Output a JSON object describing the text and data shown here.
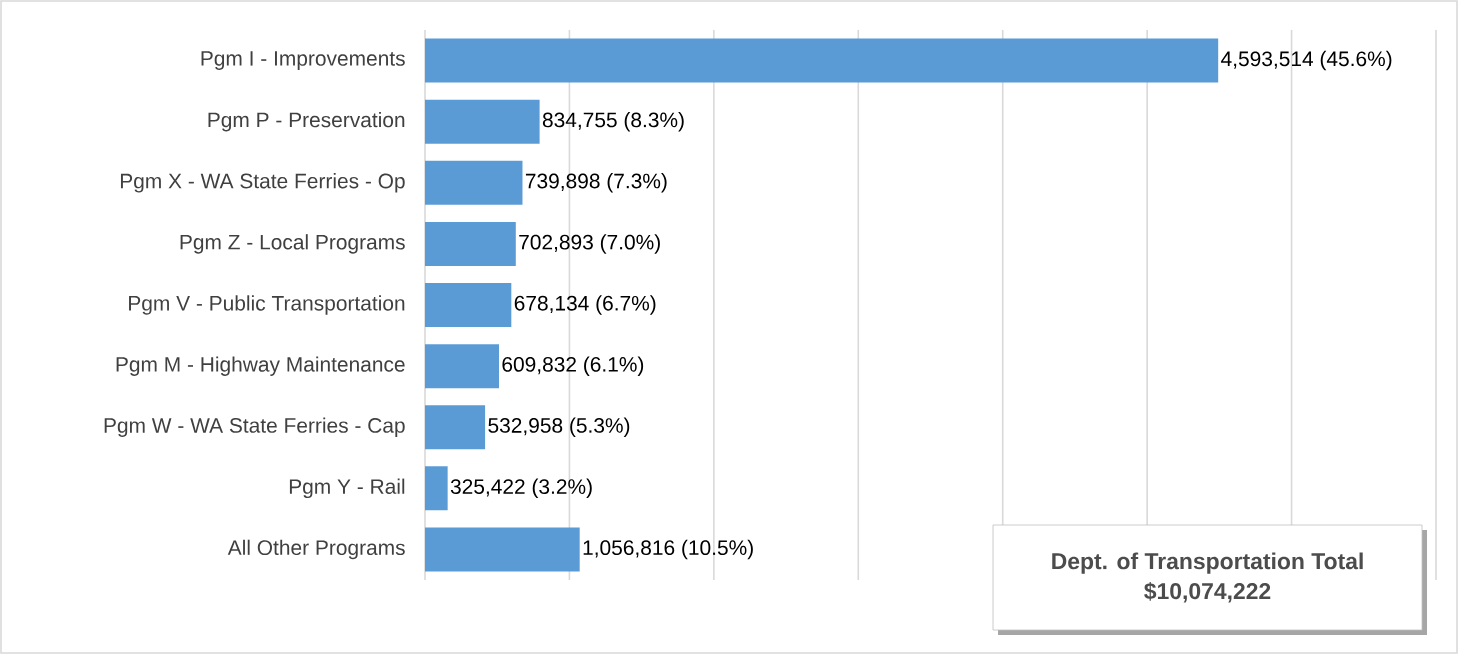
{
  "chart_data": {
    "type": "bar",
    "orientation": "horizontal",
    "categories": [
      "Pgm I - Improvements",
      "Pgm P - Preservation",
      "Pgm X - WA State Ferries - Op",
      "Pgm Z - Local Programs",
      "Pgm V - Public Transportation",
      "Pgm M - Highway Maintenance",
      "Pgm W - WA State Ferries - Cap",
      "Pgm Y - Rail",
      "All Other Programs"
    ],
    "values": [
      4593514,
      834755,
      739898,
      702893,
      678134,
      609832,
      532958,
      325422,
      1056816
    ],
    "value_labels": [
      "4,593,514  (45.6%)",
      "834,755  (8.3%)",
      "739,898  (7.3%)",
      "702,893  (7.0%)",
      "678,134  (6.7%)",
      "609,832  (6.1%)",
      "532,958  (5.3%)",
      "325,422  (3.2%)",
      "1,056,816  (10.5%)"
    ],
    "color": "#5b9bd5",
    "xlim": [
      200000,
      5800000
    ],
    "xticks": [
      {
        "value": 200000,
        "label": null
      },
      {
        "value": 1000000,
        "label": null
      },
      {
        "value": 1800000,
        "label": null
      },
      {
        "value": 2600000,
        "label": null
      },
      {
        "value": 3400000,
        "label": null
      },
      {
        "value": 4200000,
        "label": null
      },
      {
        "value": 5000000,
        "label": null
      },
      {
        "value": 5800000,
        "label": null
      }
    ],
    "grid": "x",
    "tick_labels": "y",
    "annotations": [
      "Dept. of Transportation Total",
      "$10,074,222"
    ]
  }
}
